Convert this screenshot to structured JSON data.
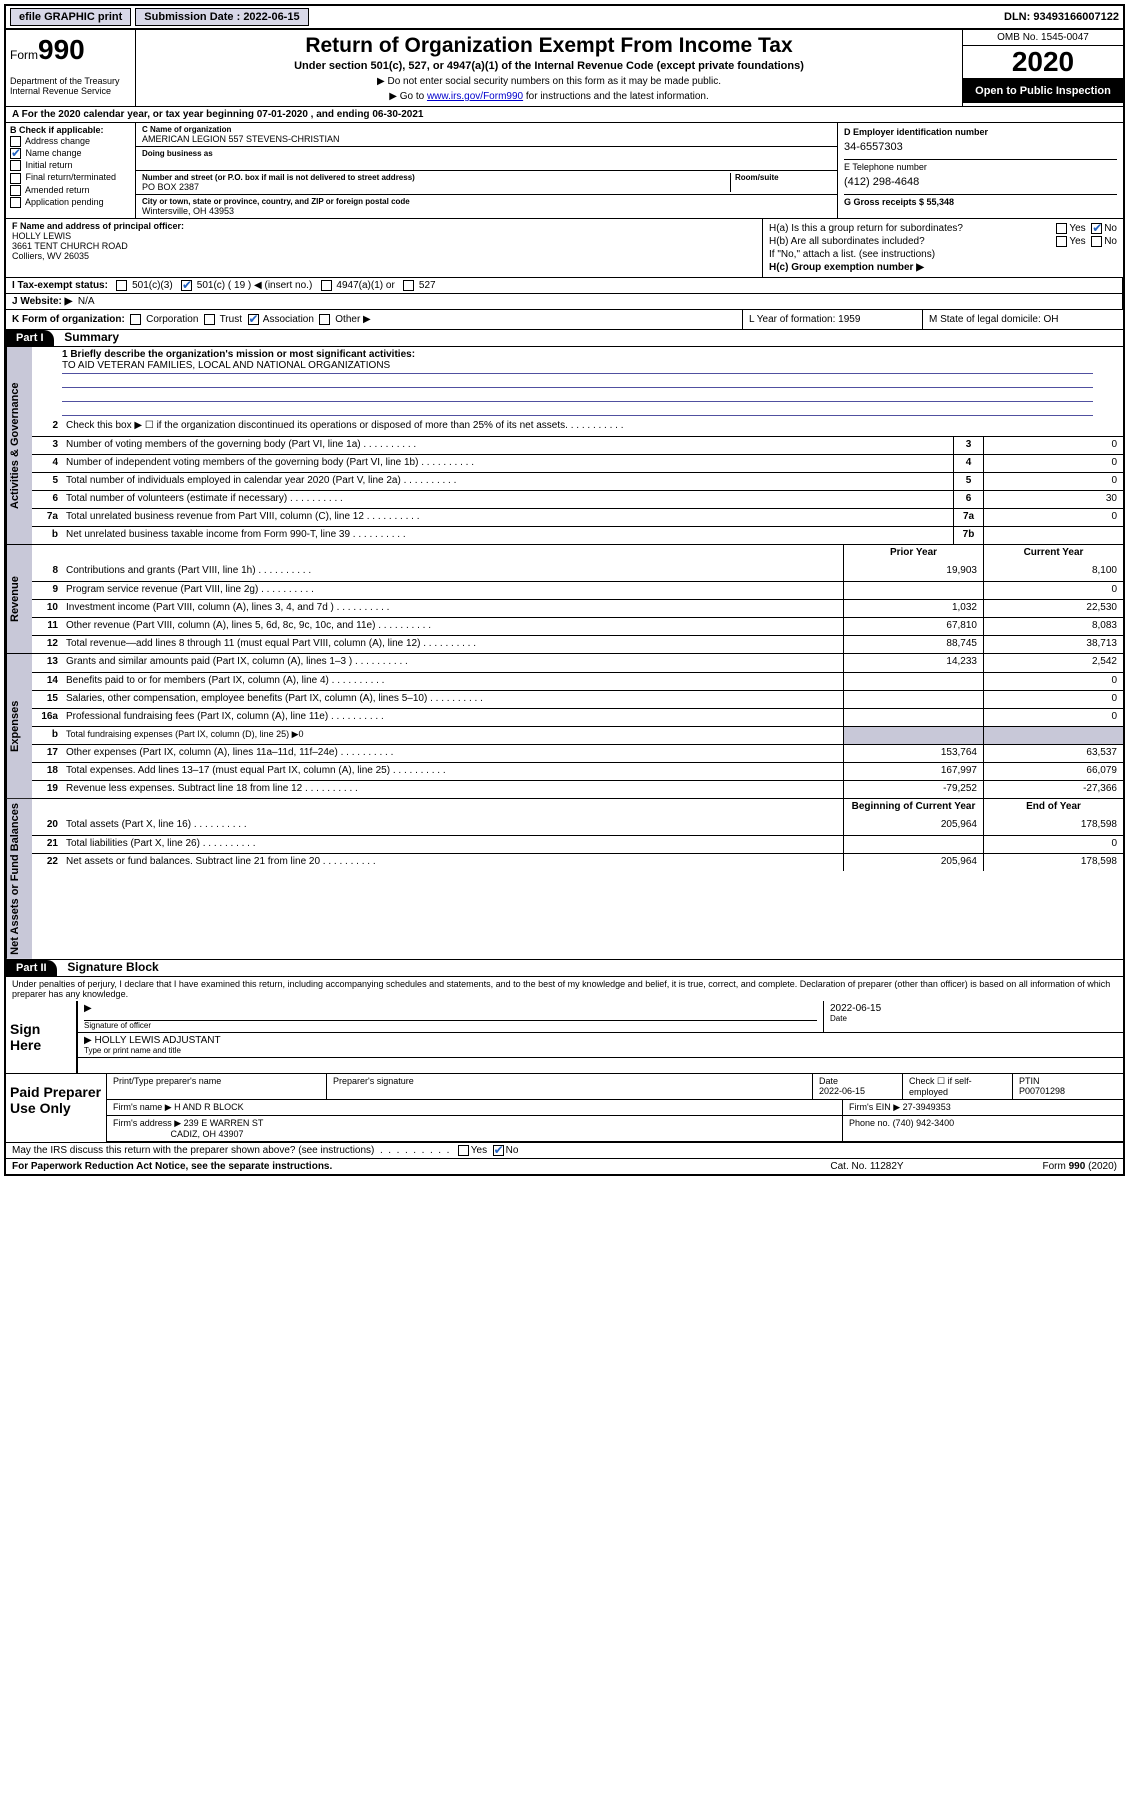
{
  "topbar": {
    "efile_btn": "efile GRAPHIC print",
    "sub_label": "Submission Date : 2022-06-15",
    "dln": "DLN: 93493166007122"
  },
  "header": {
    "form_label": "Form",
    "form_num": "990",
    "dept": "Department of the Treasury\nInternal Revenue Service",
    "title": "Return of Organization Exempt From Income Tax",
    "sub1": "Under section 501(c), 527, or 4947(a)(1) of the Internal Revenue Code (except private foundations)",
    "sub2a": "▶ Do not enter social security numbers on this form as it may be made public.",
    "sub2b_pre": "▶ Go to ",
    "sub2b_link": "www.irs.gov/Form990",
    "sub2b_post": " for instructions and the latest information.",
    "omb": "OMB No. 1545-0047",
    "year": "2020",
    "openpub": "Open to Public Inspection"
  },
  "row_a": "A For the 2020 calendar year, or tax year beginning 07-01-2020   , and ending 06-30-2021",
  "B": {
    "label": "B Check if applicable:",
    "items": [
      "Address change",
      "Name change",
      "Initial return",
      "Final return/terminated",
      "Amended return",
      "Application pending"
    ],
    "checked_idx": 1
  },
  "C": {
    "name_lbl": "C Name of organization",
    "name": "AMERICAN LEGION 557 STEVENS-CHRISTIAN",
    "dba_lbl": "Doing business as",
    "street_lbl": "Number and street (or P.O. box if mail is not delivered to street address)",
    "room_lbl": "Room/suite",
    "street": "PO BOX 2387",
    "city_lbl": "City or town, state or province, country, and ZIP or foreign postal code",
    "city": "Wintersville, OH  43953"
  },
  "D": {
    "ein_lbl": "D Employer identification number",
    "ein": "34-6557303",
    "tel_lbl": "E Telephone number",
    "tel": "(412) 298-4648",
    "gross_lbl": "G Gross receipts $ 55,348"
  },
  "F": {
    "lbl": "F Name and address of principal officer:",
    "name": "HOLLY LEWIS",
    "addr1": "3661 TENT CHURCH ROAD",
    "addr2": "Colliers, WV  26035"
  },
  "H": {
    "a_lbl": "H(a)  Is this a group return for subordinates?",
    "b_lbl": "H(b)  Are all subordinates included?",
    "b_note": "If \"No,\" attach a list. (see instructions)",
    "c_lbl": "H(c)  Group exemption number ▶"
  },
  "I": {
    "lbl": "I  Tax-exempt status:",
    "opts": [
      "501(c)(3)",
      "501(c) ( 19 ) ◀ (insert no.)",
      "4947(a)(1) or",
      "527"
    ],
    "checked_idx": 1
  },
  "J": {
    "lbl": "J  Website: ▶",
    "val": "N/A"
  },
  "K": {
    "lbl": "K Form of organization:",
    "opts": [
      "Corporation",
      "Trust",
      "Association",
      "Other ▶"
    ],
    "checked_idx": 2,
    "L": "L Year of formation: 1959",
    "M": "M State of legal domicile: OH"
  },
  "parts": {
    "p1": "Part I",
    "p1_title": "Summary",
    "p2": "Part II",
    "p2_title": "Signature Block"
  },
  "mission": {
    "lbl": "1  Briefly describe the organization's mission or most significant activities:",
    "text": "TO AID VETERAN FAMILIES, LOCAL AND NATIONAL ORGANIZATIONS"
  },
  "side_tabs": {
    "gov": "Activities & Governance",
    "rev": "Revenue",
    "exp": "Expenses",
    "net": "Net Assets or Fund Balances"
  },
  "gov_lines": [
    {
      "n": "2",
      "d": "Check this box ▶ ☐  if the organization discontinued its operations or disposed of more than 25% of its net assets."
    },
    {
      "n": "3",
      "d": "Number of voting members of the governing body (Part VI, line 1a)",
      "box": "3",
      "v": "0"
    },
    {
      "n": "4",
      "d": "Number of independent voting members of the governing body (Part VI, line 1b)",
      "box": "4",
      "v": "0"
    },
    {
      "n": "5",
      "d": "Total number of individuals employed in calendar year 2020 (Part V, line 2a)",
      "box": "5",
      "v": "0"
    },
    {
      "n": "6",
      "d": "Total number of volunteers (estimate if necessary)",
      "box": "6",
      "v": "30"
    },
    {
      "n": "7a",
      "d": "Total unrelated business revenue from Part VIII, column (C), line 12",
      "box": "7a",
      "v": "0"
    },
    {
      "n": "b",
      "d": "Net unrelated business taxable income from Form 990-T, line 39",
      "box": "7b",
      "v": ""
    }
  ],
  "col_hdrs": {
    "prior": "Prior Year",
    "current": "Current Year",
    "begin": "Beginning of Current Year",
    "end": "End of Year"
  },
  "rev_lines": [
    {
      "n": "8",
      "d": "Contributions and grants (Part VIII, line 1h)",
      "p": "19,903",
      "c": "8,100"
    },
    {
      "n": "9",
      "d": "Program service revenue (Part VIII, line 2g)",
      "p": "",
      "c": "0"
    },
    {
      "n": "10",
      "d": "Investment income (Part VIII, column (A), lines 3, 4, and 7d )",
      "p": "1,032",
      "c": "22,530"
    },
    {
      "n": "11",
      "d": "Other revenue (Part VIII, column (A), lines 5, 6d, 8c, 9c, 10c, and 11e)",
      "p": "67,810",
      "c": "8,083"
    },
    {
      "n": "12",
      "d": "Total revenue—add lines 8 through 11 (must equal Part VIII, column (A), line 12)",
      "p": "88,745",
      "c": "38,713"
    }
  ],
  "exp_lines": [
    {
      "n": "13",
      "d": "Grants and similar amounts paid (Part IX, column (A), lines 1–3 )",
      "p": "14,233",
      "c": "2,542"
    },
    {
      "n": "14",
      "d": "Benefits paid to or for members (Part IX, column (A), line 4)",
      "p": "",
      "c": "0"
    },
    {
      "n": "15",
      "d": "Salaries, other compensation, employee benefits (Part IX, column (A), lines 5–10)",
      "p": "",
      "c": "0"
    },
    {
      "n": "16a",
      "d": "Professional fundraising fees (Part IX, column (A), line 11e)",
      "p": "",
      "c": "0"
    },
    {
      "n": "b",
      "d": "Total fundraising expenses (Part IX, column (D), line 25) ▶0",
      "grey": true
    },
    {
      "n": "17",
      "d": "Other expenses (Part IX, column (A), lines 11a–11d, 11f–24e)",
      "p": "153,764",
      "c": "63,537"
    },
    {
      "n": "18",
      "d": "Total expenses. Add lines 13–17 (must equal Part IX, column (A), line 25)",
      "p": "167,997",
      "c": "66,079"
    },
    {
      "n": "19",
      "d": "Revenue less expenses. Subtract line 18 from line 12",
      "p": "-79,252",
      "c": "-27,366"
    }
  ],
  "net_lines": [
    {
      "n": "20",
      "d": "Total assets (Part X, line 16)",
      "p": "205,964",
      "c": "178,598"
    },
    {
      "n": "21",
      "d": "Total liabilities (Part X, line 26)",
      "p": "",
      "c": "0"
    },
    {
      "n": "22",
      "d": "Net assets or fund balances. Subtract line 21 from line 20",
      "p": "205,964",
      "c": "178,598"
    }
  ],
  "penalties": "Under penalties of perjury, I declare that I have examined this return, including accompanying schedules and statements, and to the best of my knowledge and belief, it is true, correct, and complete. Declaration of preparer (other than officer) is based on all information of which preparer has any knowledge.",
  "sign": {
    "lbl": "Sign Here",
    "sig_of_officer": "Signature of officer",
    "date_lbl": "Date",
    "date": "2022-06-15",
    "name": "HOLLY LEWIS  ADJUSTANT",
    "type_lbl": "Type or print name and title"
  },
  "paid": {
    "lbl": "Paid Preparer Use Only",
    "h1": "Print/Type preparer's name",
    "h2": "Preparer's signature",
    "h3": "Date",
    "h3v": "2022-06-15",
    "h4": "Check ☐ if self-employed",
    "h5": "PTIN",
    "h5v": "P00701298",
    "firm_lbl": "Firm's name    ▶",
    "firm": "H AND R BLOCK",
    "ein_lbl": "Firm's EIN ▶",
    "ein": "27-3949353",
    "addr_lbl": "Firm's address ▶",
    "addr1": "239 E WARREN ST",
    "addr2": "CADIZ, OH  43907",
    "phone_lbl": "Phone no.",
    "phone": "(740) 942-3400"
  },
  "discuss": "May the IRS discuss this return with the preparer shown above? (see instructions)",
  "footer": {
    "pra": "For Paperwork Reduction Act Notice, see the separate instructions.",
    "cat": "Cat. No. 11282Y",
    "form": "Form 990 (2020)"
  },
  "colors": {
    "accent": "#2060c0",
    "grey": "#c8c8d8",
    "link": "#0000cc"
  }
}
